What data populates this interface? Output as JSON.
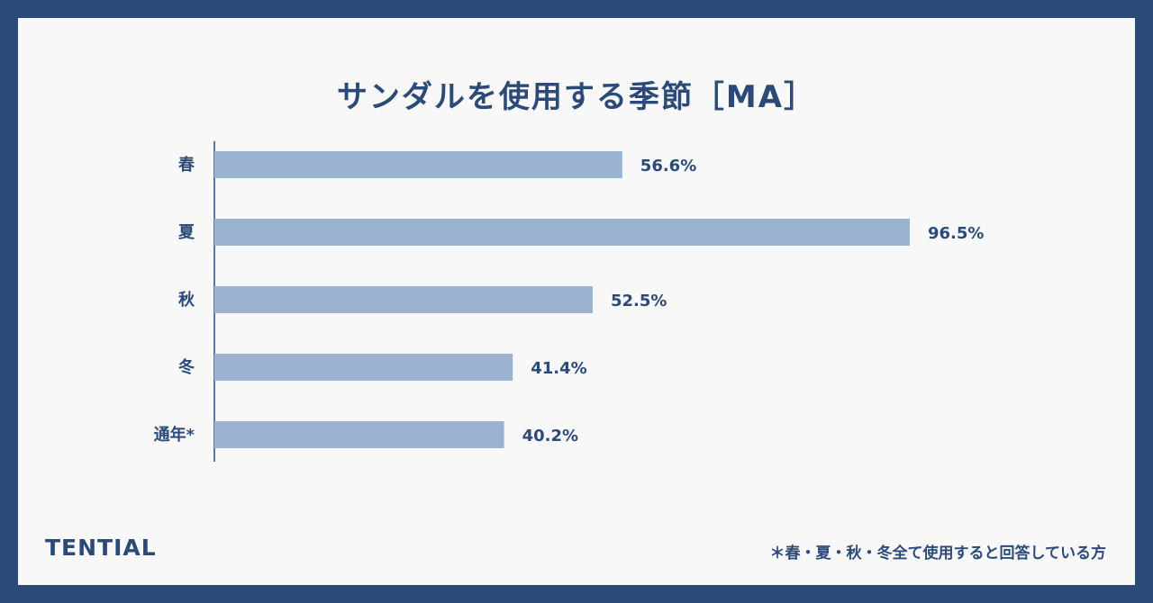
{
  "title": "サンダルを使用する季節［MA］",
  "chart_data": {
    "type": "bar",
    "orientation": "horizontal",
    "categories": [
      "春",
      "夏",
      "秋",
      "冬",
      "通年*"
    ],
    "values": [
      56.6,
      96.5,
      52.5,
      41.4,
      40.2
    ],
    "value_labels": [
      "56.6%",
      "96.5%",
      "52.5%",
      "41.4%",
      "40.2%"
    ],
    "xlim": [
      0,
      100
    ],
    "bar_color": "#9bb2d3",
    "axis_color": "#2b4a78",
    "label_color": "#2b4a78"
  },
  "brand": "TENTIAL",
  "footnote": "＊春・夏・秋・冬全て使用すると回答している方",
  "colors": {
    "frame": "#2b4a78",
    "background": "#f8f8f8"
  }
}
